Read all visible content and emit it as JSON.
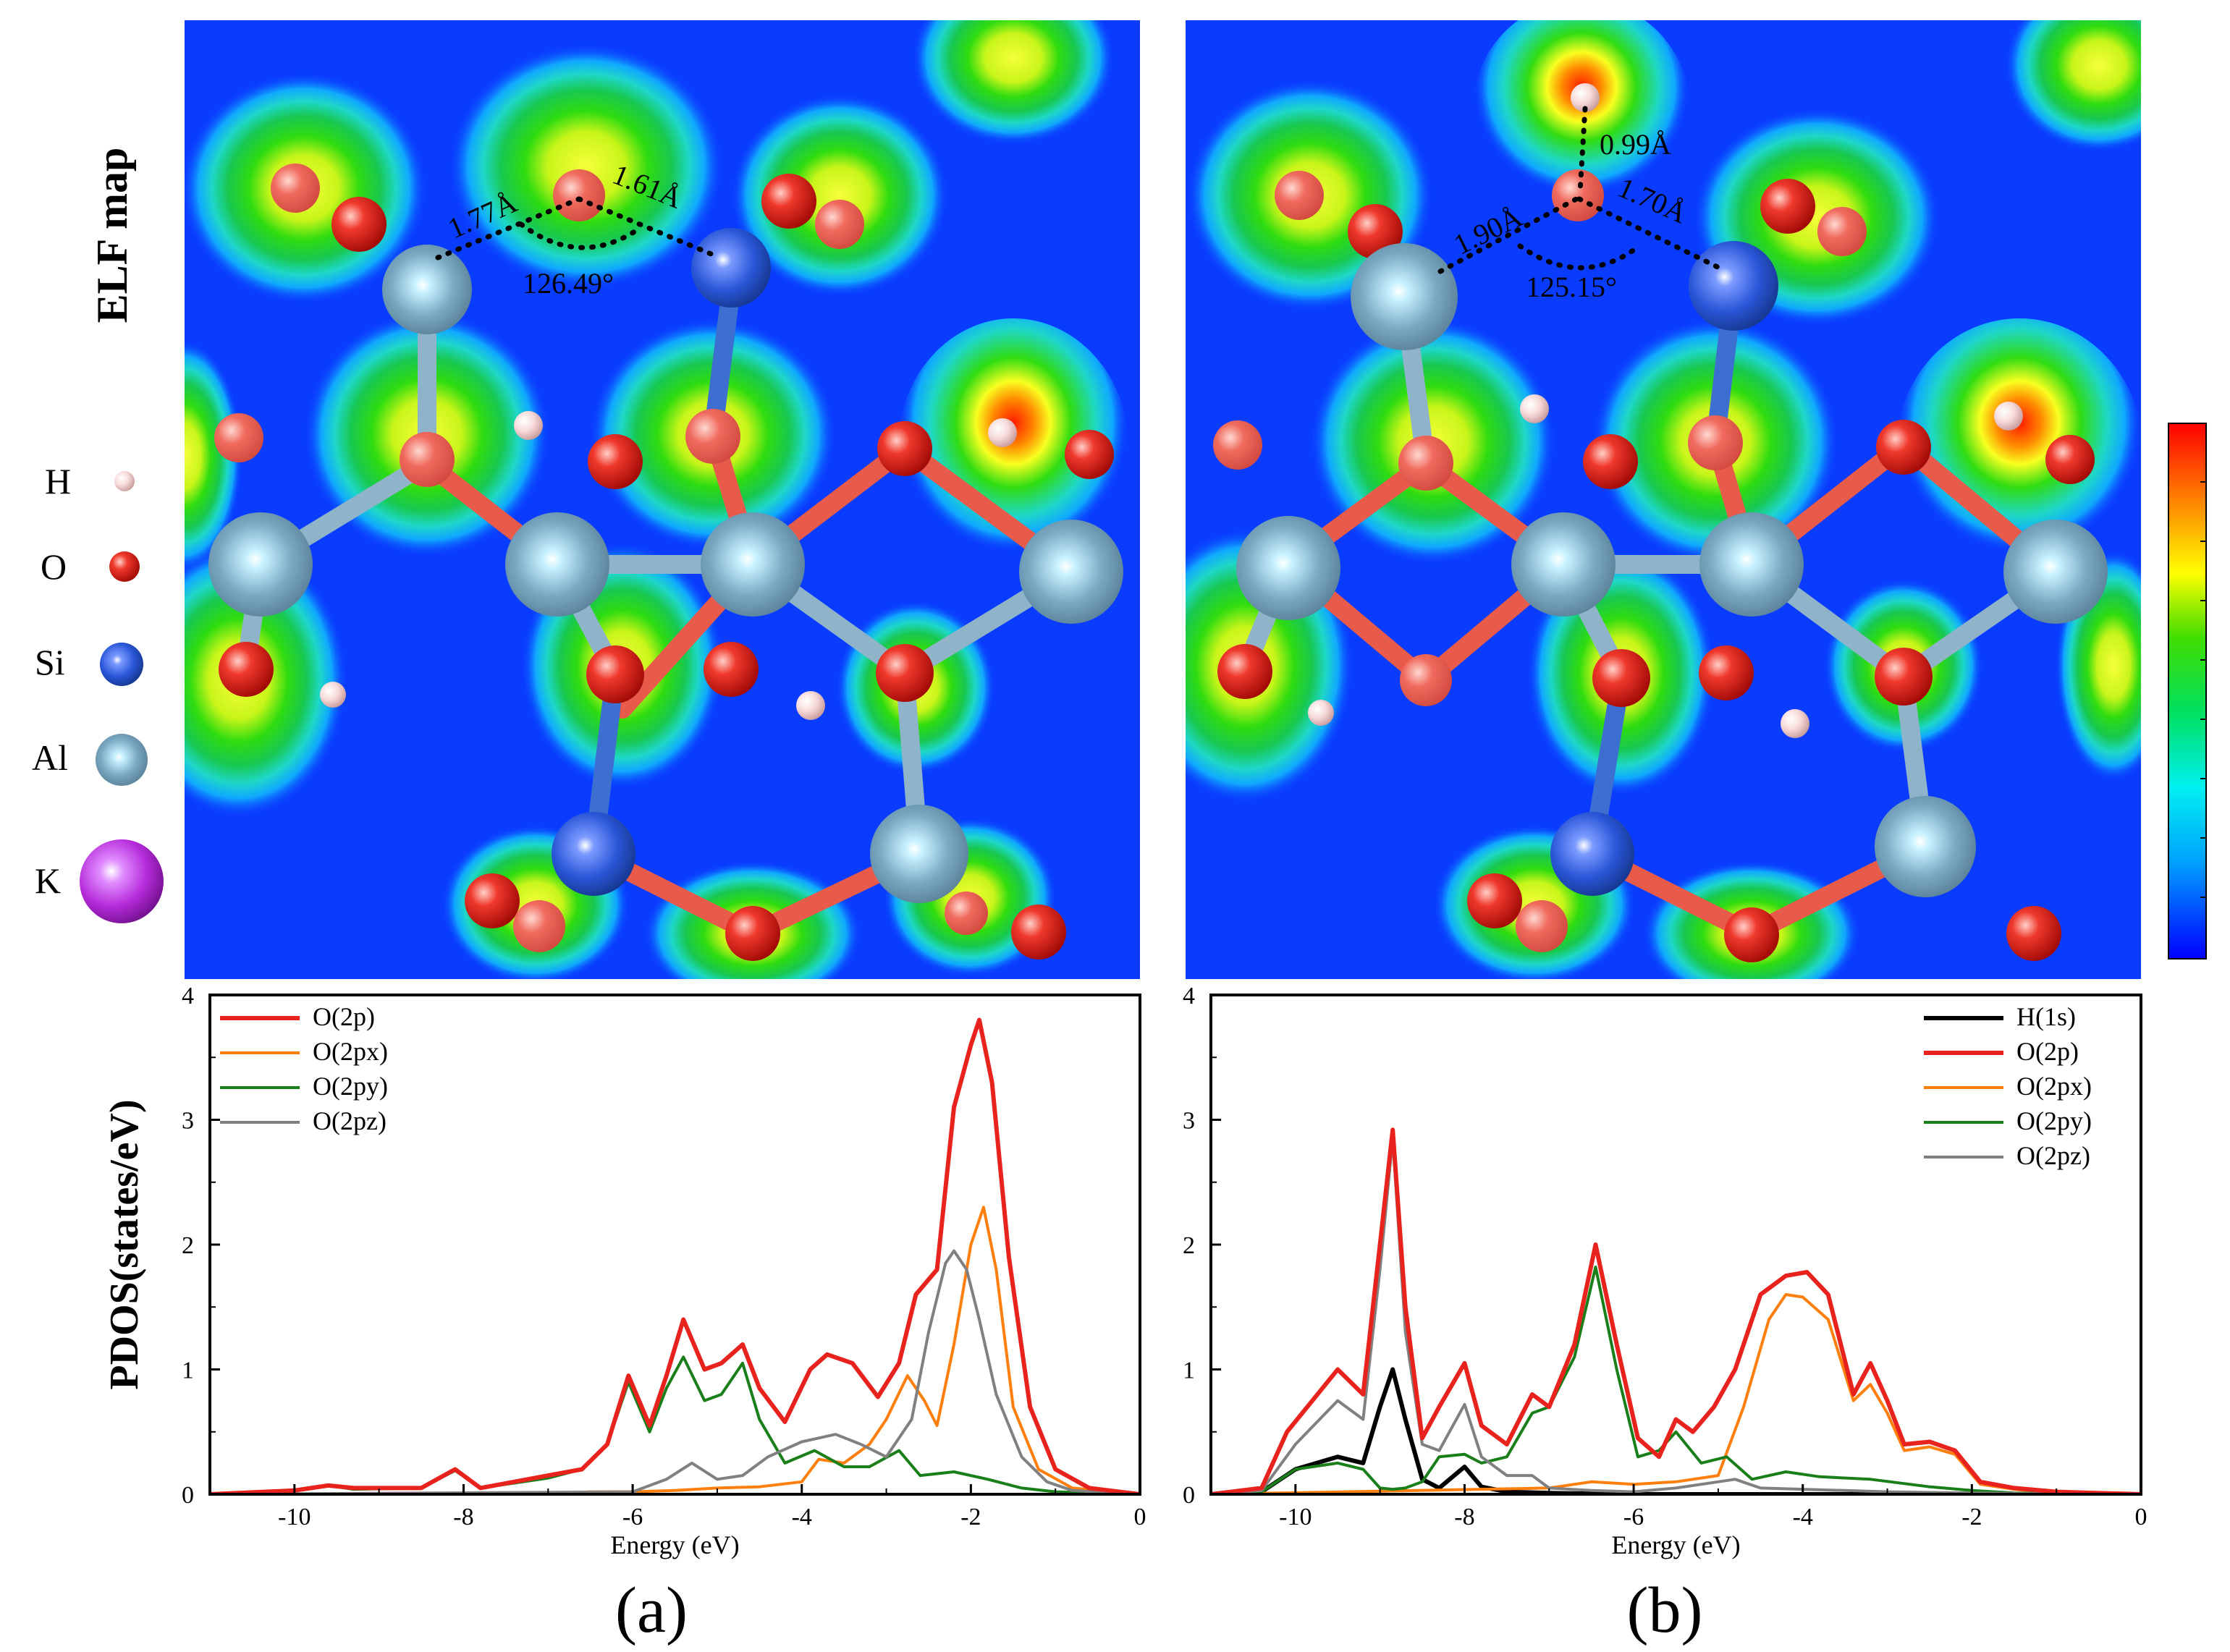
{
  "figure": {
    "elf_label": "ELF map",
    "pdos_label": "PDOS(states/eV)",
    "panel_a_label": "(a)",
    "panel_b_label": "(b)"
  },
  "legend_atoms": [
    {
      "symbol": "H",
      "color": "#f4d2d2"
    },
    {
      "symbol": "O",
      "color": "#e8231e"
    },
    {
      "symbol": "Si",
      "color": "#1f4fd6"
    },
    {
      "symbol": "Al",
      "color": "#7faecb"
    },
    {
      "symbol": "K",
      "color": "#b52bd9"
    }
  ],
  "elf_a": {
    "dist_left": "1.77Å",
    "dist_right": "1.61Å",
    "angle": "126.49°"
  },
  "elf_b": {
    "dist_top": "0.99Å",
    "dist_left": "1.90Å",
    "dist_right": "1.70Å",
    "angle": "125.15°"
  },
  "colorbar": {
    "colors": [
      "#0000ff",
      "#00aaff",
      "#00ffee",
      "#00ee44",
      "#33dd00",
      "#ffff00",
      "#ff8800",
      "#ff0000"
    ]
  },
  "chart_data": [
    {
      "type": "line",
      "panel": "a",
      "xlabel": "Energy (eV)",
      "ylabel": "PDOS(states/eV)",
      "xlim": [
        -11,
        0
      ],
      "ylim": [
        0,
        4
      ],
      "xticks": [
        -10,
        -8,
        -6,
        -4,
        -2,
        0
      ],
      "yticks": [
        0,
        1,
        2,
        3,
        4
      ],
      "legend_position": "top-left",
      "series": [
        {
          "name": "O(2p)",
          "color": "#e8231e",
          "x": [
            -11,
            -10,
            -9.6,
            -9.3,
            -8.5,
            -8.1,
            -7.8,
            -7,
            -6.6,
            -6.3,
            -6.05,
            -5.8,
            -5.6,
            -5.4,
            -5.15,
            -4.95,
            -4.7,
            -4.5,
            -4.2,
            -3.9,
            -3.7,
            -3.4,
            -3.1,
            -2.85,
            -2.65,
            -2.4,
            -2.2,
            -2.0,
            -1.9,
            -1.75,
            -1.55,
            -1.3,
            -1.0,
            -0.6,
            0
          ],
          "y": [
            0,
            0.03,
            0.07,
            0.05,
            0.05,
            0.2,
            0.05,
            0.15,
            0.2,
            0.4,
            0.95,
            0.55,
            0.95,
            1.4,
            1.0,
            1.05,
            1.2,
            0.85,
            0.58,
            1.0,
            1.12,
            1.05,
            0.78,
            1.05,
            1.6,
            1.8,
            3.1,
            3.6,
            3.8,
            3.3,
            1.9,
            0.7,
            0.2,
            0.05,
            0
          ]
        },
        {
          "name": "O(2px)",
          "color": "#ff7f0e",
          "x": [
            -11,
            -7,
            -6.5,
            -6,
            -5.5,
            -5,
            -4.5,
            -4,
            -3.8,
            -3.5,
            -3.2,
            -3.0,
            -2.75,
            -2.55,
            -2.4,
            -2.2,
            -2.0,
            -1.85,
            -1.7,
            -1.5,
            -1.2,
            -0.8,
            0
          ],
          "y": [
            0,
            0,
            0.02,
            0.02,
            0.03,
            0.05,
            0.06,
            0.1,
            0.28,
            0.25,
            0.4,
            0.6,
            0.95,
            0.75,
            0.55,
            1.2,
            2.0,
            2.3,
            1.8,
            0.7,
            0.2,
            0.05,
            0
          ]
        },
        {
          "name": "O(2py)",
          "color": "#1a7f1a",
          "x": [
            -11,
            -10,
            -9.6,
            -9.3,
            -8.5,
            -8.1,
            -7.8,
            -7,
            -6.6,
            -6.3,
            -6.05,
            -5.8,
            -5.6,
            -5.4,
            -5.15,
            -4.95,
            -4.7,
            -4.5,
            -4.2,
            -3.85,
            -3.5,
            -3.2,
            -2.85,
            -2.6,
            -2.2,
            -1.8,
            -1.4,
            -1.0,
            0
          ],
          "y": [
            0,
            0.03,
            0.07,
            0.04,
            0.05,
            0.19,
            0.05,
            0.13,
            0.2,
            0.4,
            0.9,
            0.5,
            0.85,
            1.1,
            0.75,
            0.8,
            1.05,
            0.6,
            0.25,
            0.35,
            0.22,
            0.22,
            0.35,
            0.15,
            0.18,
            0.12,
            0.05,
            0.02,
            0
          ]
        },
        {
          "name": "O(2pz)",
          "color": "#808080",
          "x": [
            -11,
            -6,
            -5.6,
            -5.3,
            -5.0,
            -4.7,
            -4.4,
            -4.0,
            -3.6,
            -3.3,
            -3.0,
            -2.7,
            -2.5,
            -2.3,
            -2.2,
            -2.05,
            -1.9,
            -1.7,
            -1.4,
            -1.1,
            -0.8,
            0
          ],
          "y": [
            0,
            0.02,
            0.12,
            0.25,
            0.12,
            0.15,
            0.3,
            0.42,
            0.48,
            0.4,
            0.3,
            0.6,
            1.3,
            1.85,
            1.95,
            1.8,
            1.4,
            0.8,
            0.3,
            0.1,
            0.03,
            0
          ]
        }
      ]
    },
    {
      "type": "line",
      "panel": "b",
      "xlabel": "Energy (eV)",
      "ylabel": "PDOS(states/eV)",
      "xlim": [
        -11,
        0
      ],
      "ylim": [
        0,
        4
      ],
      "xticks": [
        -10,
        -8,
        -6,
        -4,
        -2,
        0
      ],
      "yticks": [
        0,
        1,
        2,
        3,
        4
      ],
      "legend_position": "top-right",
      "series": [
        {
          "name": "H(1s)",
          "color": "#000000",
          "x": [
            -11,
            -10.4,
            -10,
            -9.5,
            -9.2,
            -9.0,
            -8.85,
            -8.7,
            -8.5,
            -8.3,
            -8.0,
            -7.8,
            -7.5,
            -7,
            -6,
            0
          ],
          "y": [
            0,
            0.02,
            0.2,
            0.3,
            0.25,
            0.7,
            1.0,
            0.6,
            0.12,
            0.05,
            0.22,
            0.06,
            0.02,
            0.01,
            0,
            0
          ]
        },
        {
          "name": "O(2p)",
          "color": "#e8231e",
          "x": [
            -11,
            -10.4,
            -10.1,
            -9.8,
            -9.5,
            -9.2,
            -9.0,
            -8.85,
            -8.7,
            -8.5,
            -8.3,
            -8.0,
            -7.8,
            -7.5,
            -7.2,
            -7.0,
            -6.7,
            -6.45,
            -6.2,
            -5.95,
            -5.7,
            -5.5,
            -5.3,
            -5.05,
            -4.8,
            -4.5,
            -4.2,
            -3.95,
            -3.7,
            -3.4,
            -3.2,
            -3.0,
            -2.8,
            -2.5,
            -2.2,
            -1.9,
            -1.5,
            -1.0,
            0
          ],
          "y": [
            0,
            0.05,
            0.5,
            0.75,
            1.0,
            0.8,
            2.0,
            2.92,
            1.5,
            0.45,
            0.7,
            1.05,
            0.55,
            0.4,
            0.8,
            0.7,
            1.2,
            2.0,
            1.2,
            0.45,
            0.3,
            0.6,
            0.5,
            0.7,
            1.0,
            1.6,
            1.75,
            1.78,
            1.6,
            0.8,
            1.05,
            0.75,
            0.4,
            0.42,
            0.35,
            0.1,
            0.05,
            0.02,
            0
          ]
        },
        {
          "name": "O(2px)",
          "color": "#ff7f0e",
          "x": [
            -11,
            -7,
            -6.5,
            -6,
            -5.5,
            -5.0,
            -4.7,
            -4.4,
            -4.2,
            -4.0,
            -3.7,
            -3.4,
            -3.2,
            -3.0,
            -2.8,
            -2.5,
            -2.2,
            -1.9,
            -1.5,
            -1.0,
            0
          ],
          "y": [
            0,
            0.05,
            0.1,
            0.08,
            0.1,
            0.15,
            0.7,
            1.4,
            1.6,
            1.58,
            1.4,
            0.75,
            0.88,
            0.65,
            0.35,
            0.38,
            0.32,
            0.08,
            0.04,
            0.01,
            0
          ]
        },
        {
          "name": "O(2py)",
          "color": "#1a7f1a",
          "x": [
            -11,
            -10.4,
            -10,
            -9.5,
            -9.2,
            -9.0,
            -8.85,
            -8.7,
            -8.5,
            -8.3,
            -8.0,
            -7.8,
            -7.5,
            -7.2,
            -7.0,
            -6.7,
            -6.45,
            -6.2,
            -5.95,
            -5.7,
            -5.5,
            -5.2,
            -4.9,
            -4.6,
            -4.2,
            -3.8,
            -3.2,
            -2.5,
            -2.0,
            -1.5,
            0
          ],
          "y": [
            0,
            0.02,
            0.2,
            0.25,
            0.2,
            0.05,
            0.04,
            0.05,
            0.1,
            0.3,
            0.32,
            0.25,
            0.3,
            0.65,
            0.7,
            1.1,
            1.82,
            1.0,
            0.3,
            0.35,
            0.5,
            0.25,
            0.3,
            0.12,
            0.18,
            0.14,
            0.12,
            0.06,
            0.03,
            0.01,
            0
          ]
        },
        {
          "name": "O(2pz)",
          "color": "#808080",
          "x": [
            -11,
            -10.4,
            -10.0,
            -9.5,
            -9.2,
            -9.0,
            -8.85,
            -8.7,
            -8.5,
            -8.3,
            -8.0,
            -7.8,
            -7.5,
            -7.2,
            -7.0,
            -6.5,
            -6.0,
            -5.5,
            -5.0,
            -4.8,
            -4.5,
            -4.0,
            -3.5,
            -3.0,
            -2.0,
            0
          ],
          "y": [
            0,
            0.03,
            0.4,
            0.75,
            0.6,
            1.8,
            2.85,
            1.3,
            0.4,
            0.35,
            0.72,
            0.3,
            0.15,
            0.15,
            0.05,
            0.03,
            0.02,
            0.05,
            0.1,
            0.12,
            0.05,
            0.04,
            0.03,
            0.02,
            0.01,
            0
          ]
        }
      ]
    }
  ]
}
